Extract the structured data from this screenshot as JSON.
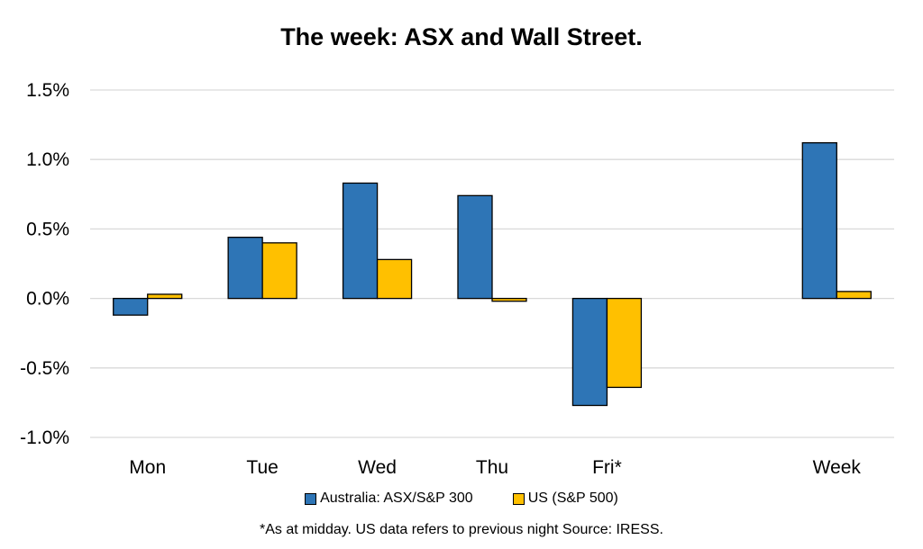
{
  "chart_data": {
    "type": "bar",
    "title": "The week:  ASX and Wall Street.",
    "categories": [
      "Mon",
      "Tue",
      "Wed",
      "Thu",
      "Fri*",
      "",
      "Week"
    ],
    "series": [
      {
        "name": "Australia: ASX/S&P 300",
        "color": "#2e75b6",
        "values": [
          -0.12,
          0.44,
          0.83,
          0.74,
          -0.77,
          null,
          1.12
        ]
      },
      {
        "name": "US (S&P 500)",
        "color": "#ffc000",
        "values": [
          0.03,
          0.4,
          0.28,
          -0.02,
          -0.64,
          null,
          0.05
        ]
      }
    ],
    "yticks": [
      "1.5%",
      "1.0%",
      "0.5%",
      "0.0%",
      "-0.5%",
      "-1.0%"
    ],
    "ylim": [
      -1.0,
      1.5
    ],
    "grid": true,
    "legend_position": "bottom",
    "footnote": "*As at midday. US data refers to previous night  Source:  IRESS."
  }
}
